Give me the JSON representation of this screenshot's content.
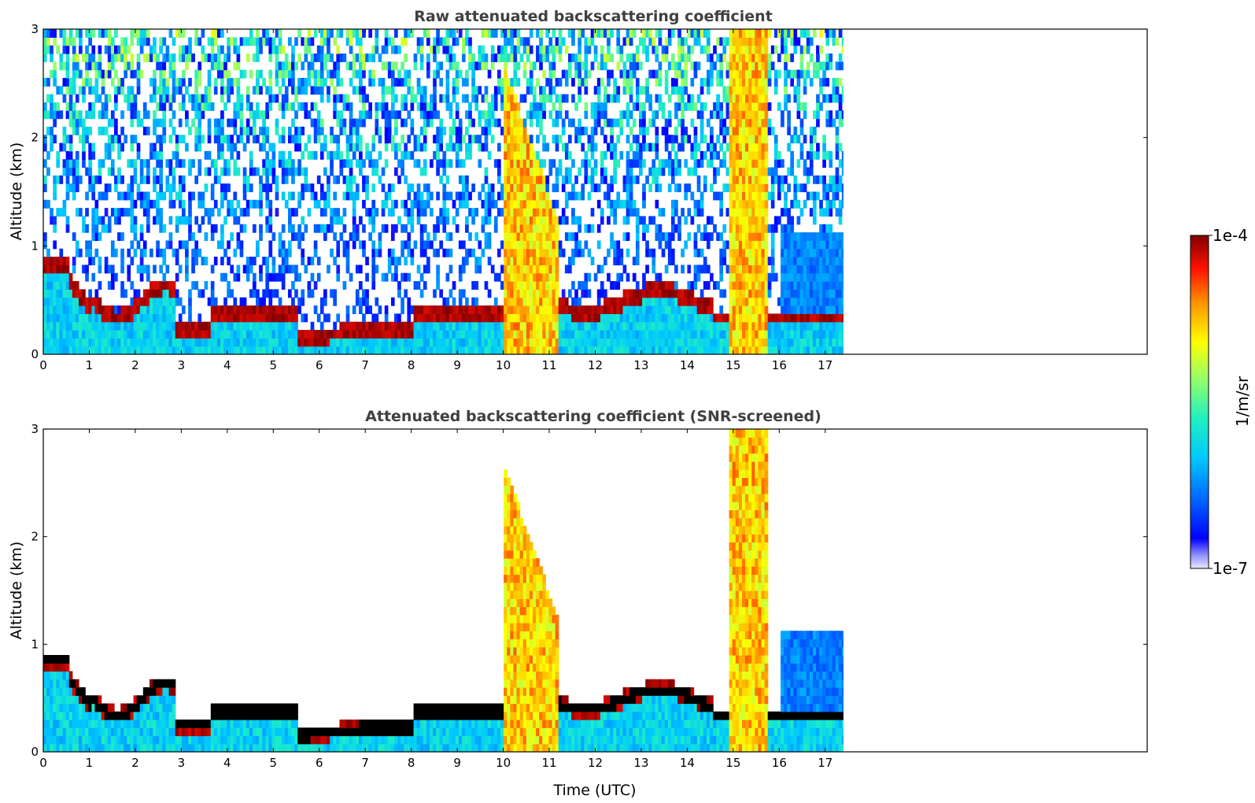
{
  "chart_data": [
    {
      "type": "heatmap",
      "title": "Raw attenuated backscattering coefficient",
      "xlabel": "",
      "ylabel": "Altitude (km)",
      "xlim": [
        0,
        24
      ],
      "ylim": [
        0,
        3
      ],
      "xticks": [
        "0",
        "1",
        "2",
        "3",
        "4",
        "5",
        "6",
        "7",
        "8",
        "9",
        "10",
        "11",
        "12",
        "13",
        "14",
        "15",
        "16",
        "17"
      ],
      "yticks": [
        "0",
        "1",
        "2",
        "3"
      ],
      "data_extent_hours": 17.5,
      "screened": false
    },
    {
      "type": "heatmap",
      "title": "Attenuated backscattering coefficient (SNR-screened)",
      "xlabel": "Time (UTC)",
      "ylabel": "Altitude (km)",
      "xlim": [
        0,
        24
      ],
      "ylim": [
        0,
        3
      ],
      "xticks": [
        "0",
        "1",
        "2",
        "3",
        "4",
        "5",
        "6",
        "7",
        "8",
        "9",
        "10",
        "11",
        "12",
        "13",
        "14",
        "15",
        "16",
        "17"
      ],
      "yticks": [
        "0",
        "1",
        "2",
        "3"
      ],
      "data_extent_hours": 17.5,
      "screened": true
    }
  ],
  "colorbar": {
    "label": "1/m/sr",
    "max_label": "1e-4",
    "min_label": "1e-7",
    "colormap": "jet",
    "scale": "log"
  }
}
